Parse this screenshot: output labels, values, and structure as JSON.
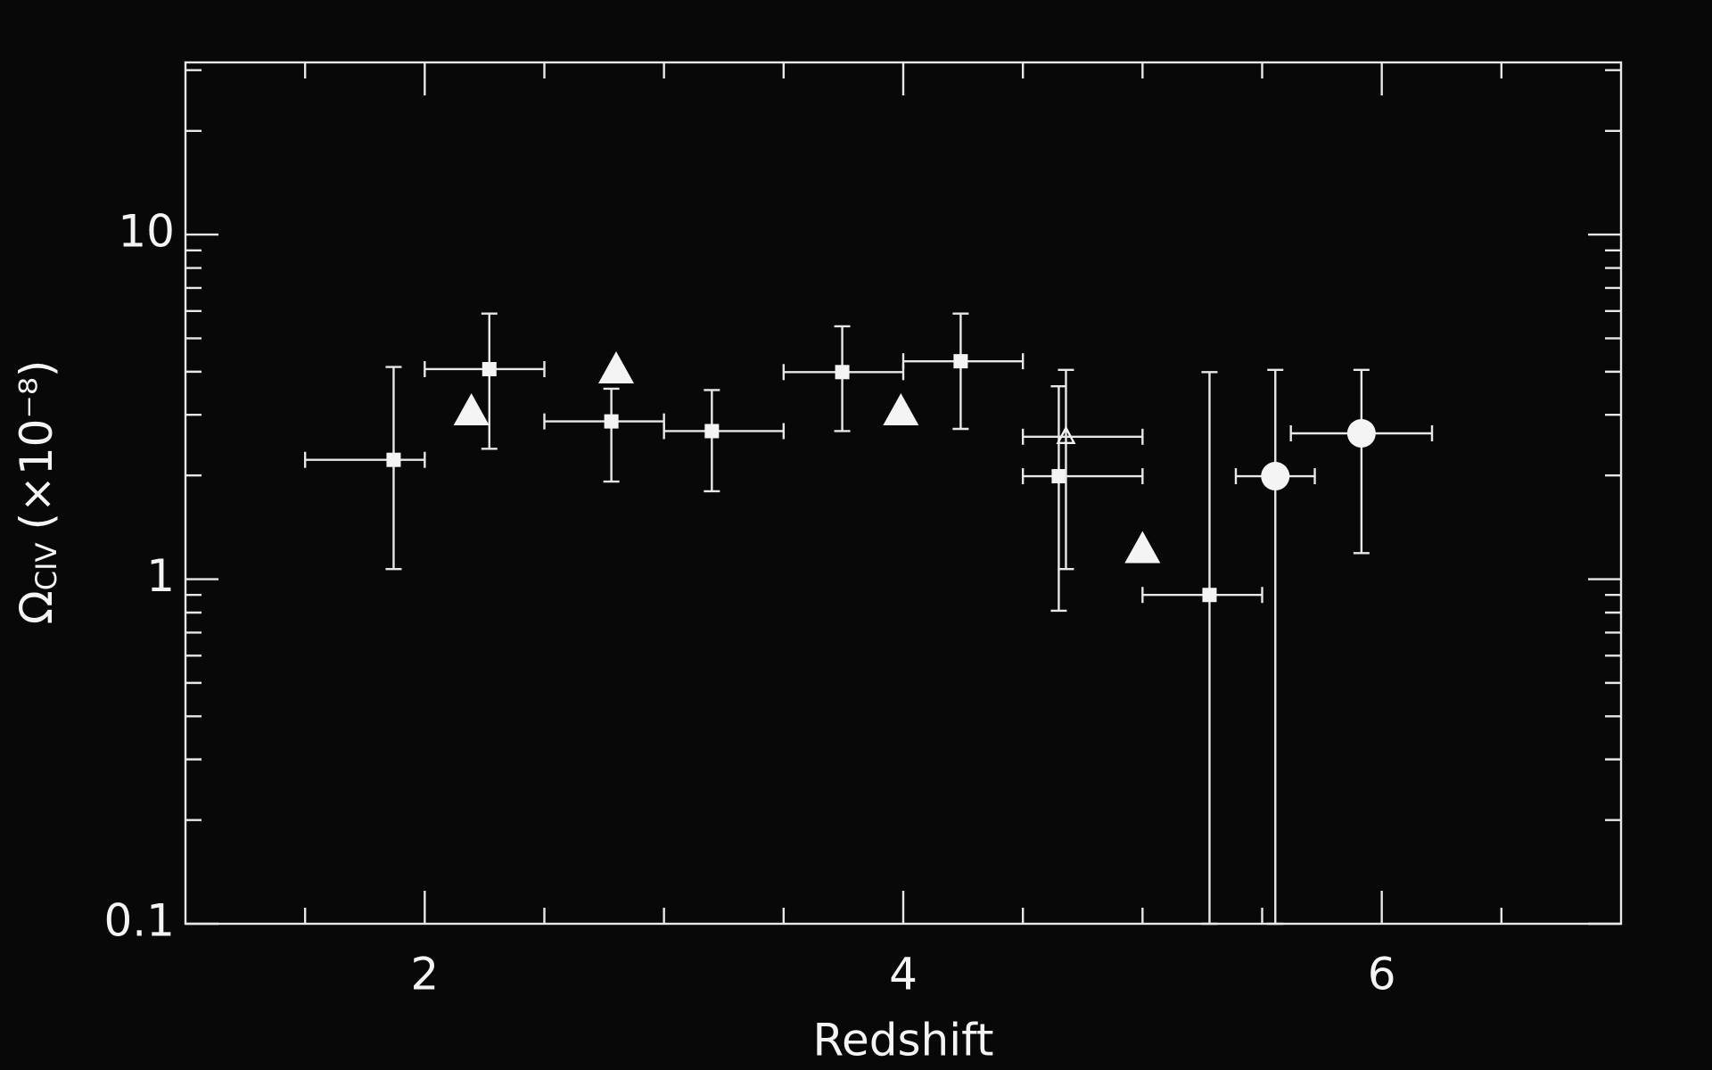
{
  "chart_data": {
    "type": "scatter",
    "xlabel": "Redshift",
    "ylabel_symbol": "Ω",
    "ylabel_subscript": "CIV",
    "ylabel_unit": "(×10⁻⁸)",
    "xlim": [
      1,
      7
    ],
    "xticks": [
      2,
      4,
      6
    ],
    "xminor": [
      1.5,
      2.5,
      3,
      3.5,
      4.5,
      5,
      5.5,
      6.5
    ],
    "ylim": [
      0.1,
      31.6
    ],
    "log_y": true,
    "yticks": [
      0.1,
      1,
      10
    ],
    "yminor": [
      0.2,
      0.3,
      0.4,
      0.5,
      0.6,
      0.7,
      0.8,
      0.9,
      2,
      3,
      4,
      5,
      6,
      7,
      8,
      9,
      20,
      30
    ],
    "grid": false,
    "color": "#f4f4f4",
    "series": [
      {
        "marker": "square",
        "x": [
          1.87,
          2.27,
          2.78,
          3.2,
          3.745,
          4.24,
          4.65,
          5.28
        ],
        "values": [
          2.22,
          4.07,
          2.87,
          2.69,
          3.99,
          4.29,
          1.99,
          0.9
        ],
        "xlow": [
          1.5,
          2.0,
          2.5,
          3.0,
          3.5,
          4.0,
          4.5,
          5.0
        ],
        "xhigh": [
          2.0,
          2.5,
          3.0,
          3.5,
          4.0,
          4.5,
          5.0,
          5.5
        ],
        "ylow": [
          1.07,
          2.39,
          1.92,
          1.8,
          2.69,
          2.73,
          0.81,
          0.1
        ],
        "yhigh": [
          4.13,
          5.9,
          3.57,
          3.54,
          5.42,
          5.9,
          3.63,
          3.99
        ]
      },
      {
        "marker": "open-triangle",
        "x": [
          4.68
        ],
        "values": [
          2.59
        ],
        "xlow": [
          4.5
        ],
        "xhigh": [
          5.0
        ],
        "ylow": [
          1.07
        ],
        "yhigh": [
          4.05
        ]
      },
      {
        "marker": "triangle",
        "x": [
          2.195,
          2.8,
          3.99,
          5.0
        ],
        "values": [
          3.04,
          4.02,
          3.04,
          1.21
        ]
      },
      {
        "marker": "circle",
        "x": [
          5.555,
          5.915
        ],
        "values": [
          1.99,
          2.65
        ],
        "xlow": [
          5.39,
          5.62
        ],
        "xhigh": [
          5.72,
          6.21
        ],
        "ylow": [
          0.1,
          1.19
        ],
        "yhigh": [
          4.05,
          4.05
        ]
      }
    ]
  }
}
